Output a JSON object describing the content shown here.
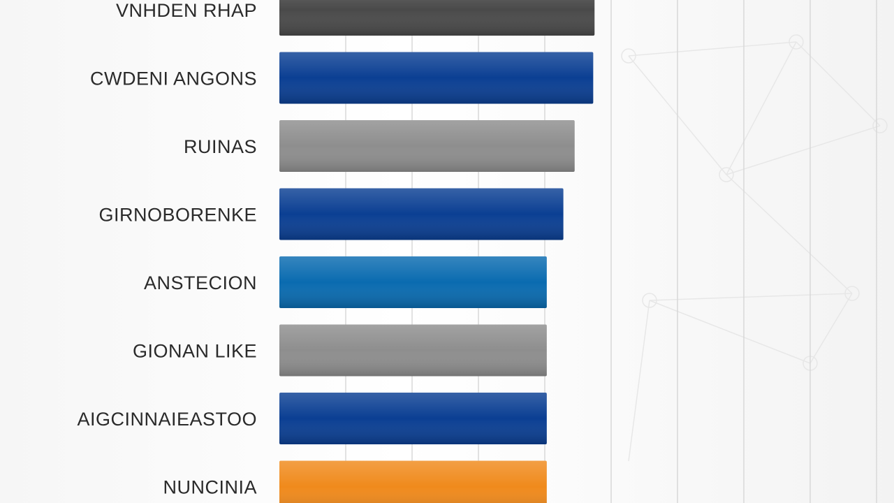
{
  "chart_data": {
    "type": "bar",
    "orientation": "horizontal",
    "categories": [
      "VNHDEN RHAP",
      "CWDENI ANGONS",
      "RUINAS",
      "GIRNOBORENKE",
      "ANSTECION",
      "GIONAN LIKE",
      "AIGCINNAIEASTOO",
      "NUNCINIA"
    ],
    "values": [
      4.75,
      4.73,
      4.45,
      4.28,
      4.03,
      4.03,
      4.03,
      4.03
    ],
    "xlim": [
      0,
      9.4
    ],
    "grid": true,
    "colors": [
      "#4a4a4a",
      "#0b3f93",
      "#8e8e8e",
      "#0b3f93",
      "#0a6bb0",
      "#8e8e8e",
      "#0b3f93",
      "#f08a1c"
    ],
    "title": "",
    "xlabel": "",
    "ylabel": ""
  }
}
